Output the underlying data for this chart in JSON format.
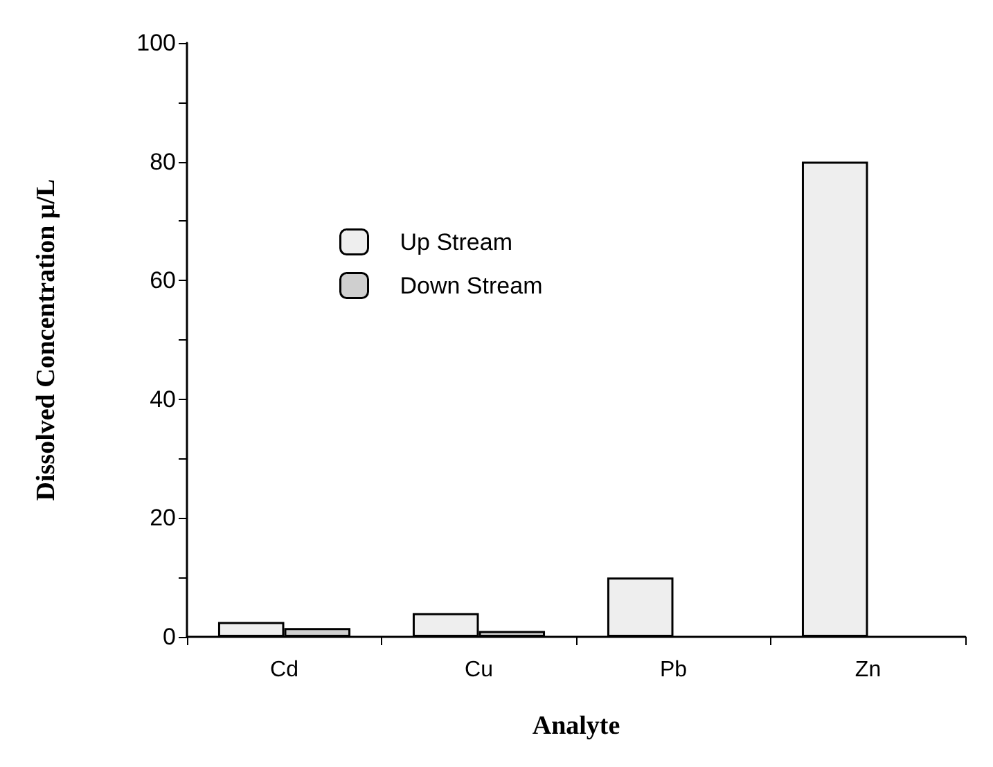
{
  "chart_data": {
    "type": "bar",
    "xlabel": "Analyte",
    "ylabel": "Dissolved Concentration μ/L",
    "categories": [
      "Cd",
      "Cu",
      "Pb",
      "Zn"
    ],
    "series": [
      {
        "name": "Up Stream",
        "color": "#eeeeee",
        "values": [
          2.5,
          4,
          10,
          80
        ]
      },
      {
        "name": "Down Stream",
        "color": "#cfcfcf",
        "values": [
          1.5,
          1,
          null,
          null
        ]
      }
    ],
    "ylim": [
      0,
      100
    ],
    "yticks": [
      0,
      {
        "value": 10,
        "label": null
      },
      20,
      {
        "value": 30,
        "label": null
      },
      40,
      {
        "value": 50,
        "label": null
      },
      60,
      {
        "value": 70,
        "label": null
      },
      80,
      {
        "value": 90,
        "label": null
      },
      100
    ],
    "grid": false,
    "legend": "top left"
  }
}
